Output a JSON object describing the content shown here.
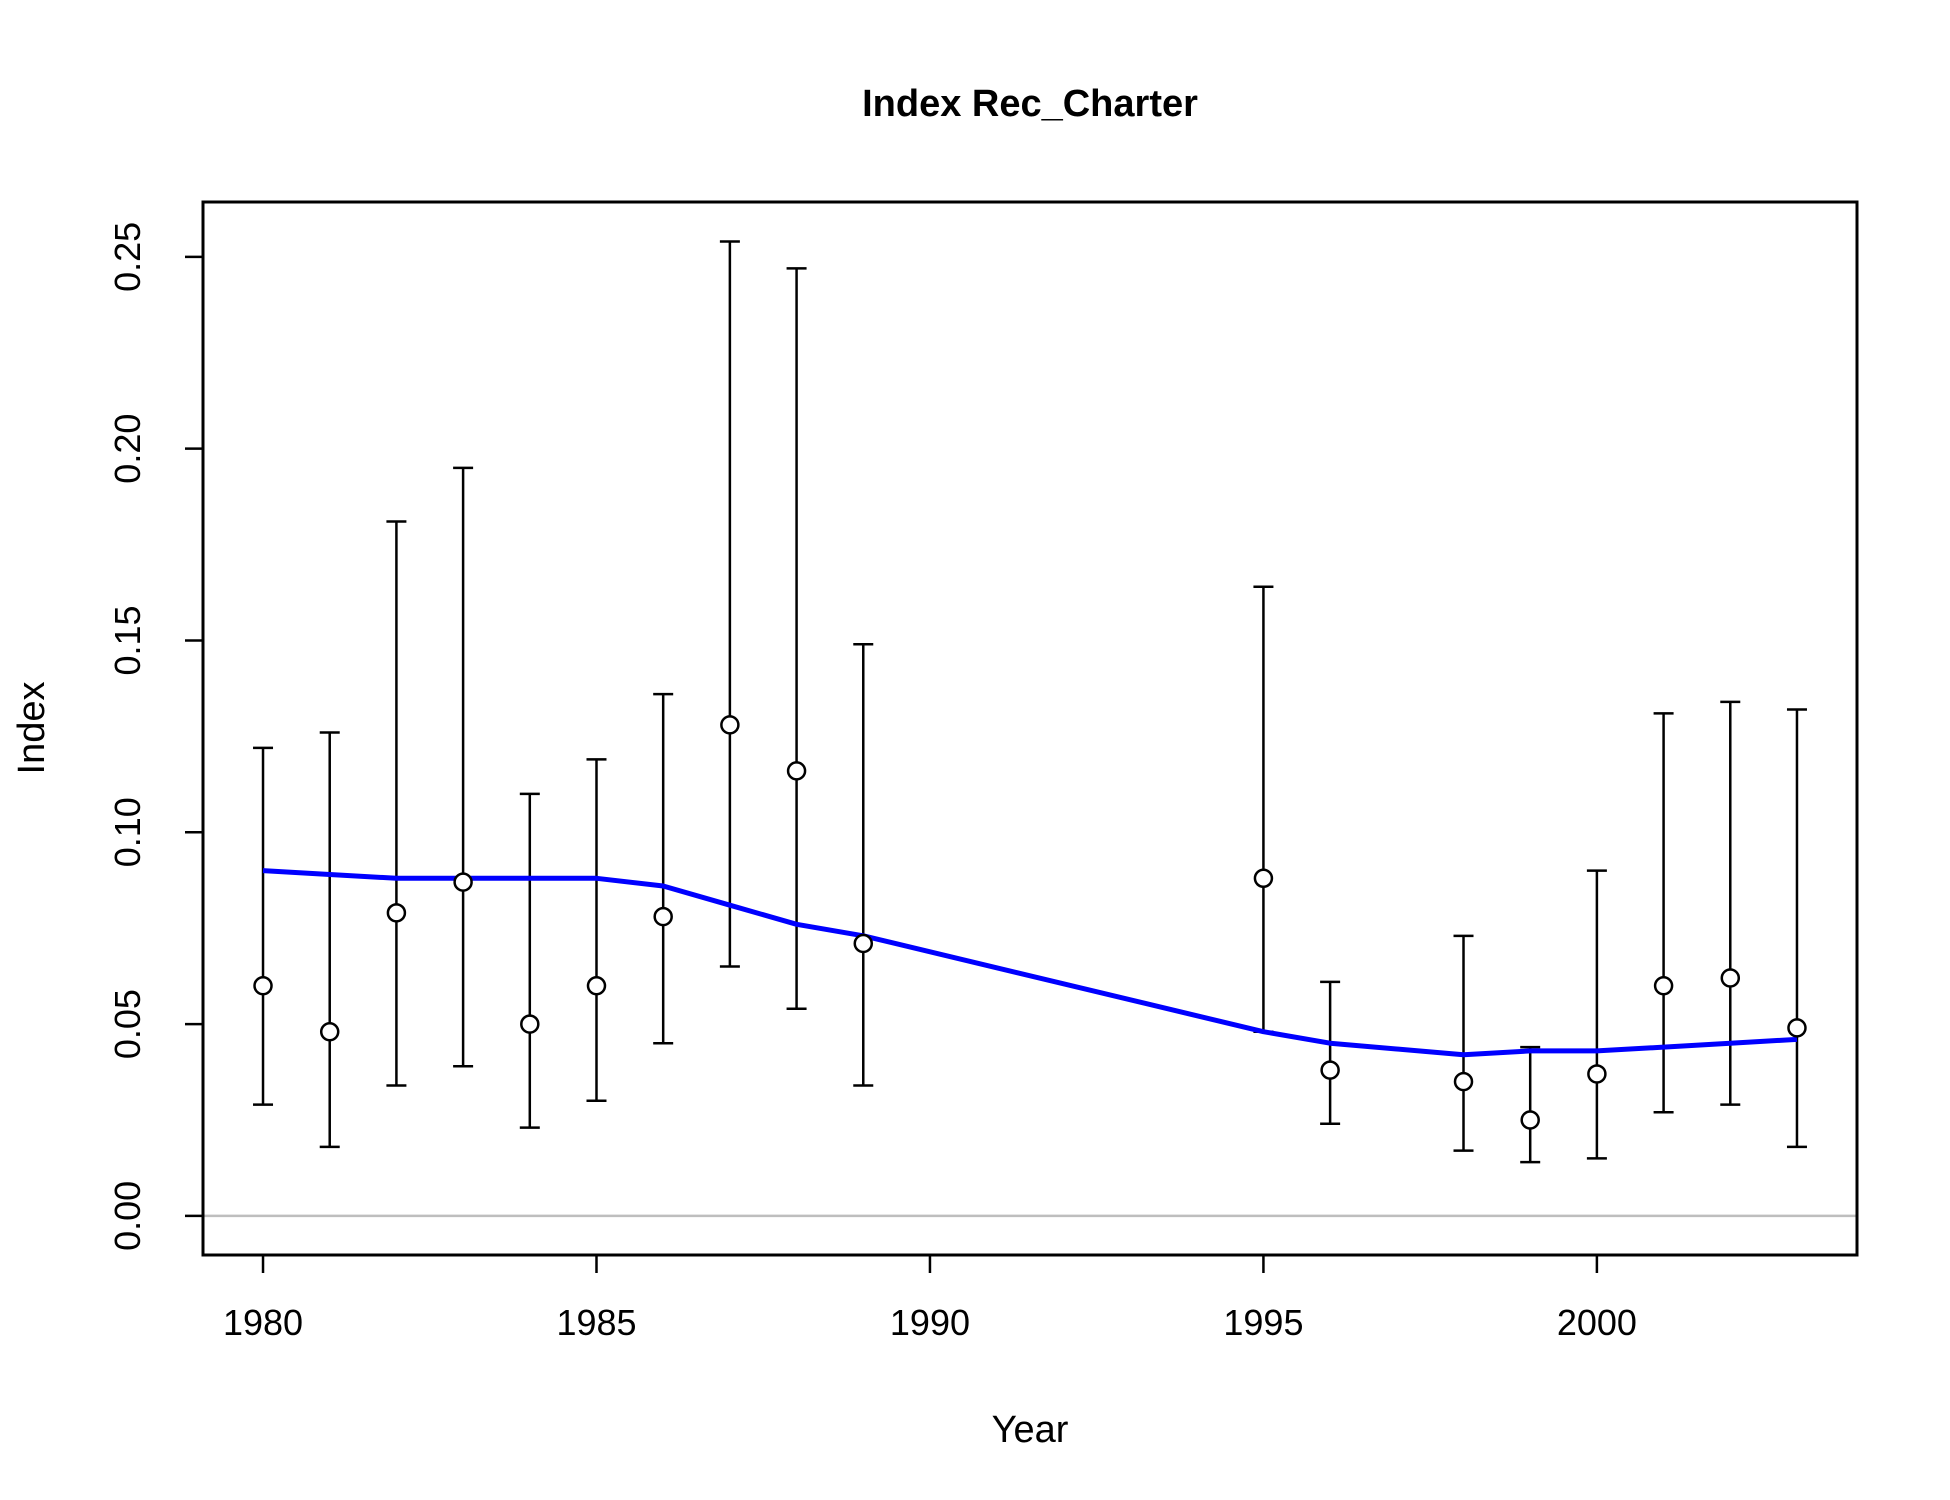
{
  "chart_data": {
    "type": "scatter",
    "title": "Index Rec_Charter",
    "xlabel": "Year",
    "ylabel": "Index",
    "xlim": [
      1979.1,
      2003.9
    ],
    "ylim": [
      -0.0102,
      0.2643
    ],
    "x_ticks": [
      "1980",
      "1985",
      "1990",
      "1995",
      "2000"
    ],
    "y_ticks": [
      "0.00",
      "0.05",
      "0.10",
      "0.15",
      "0.20",
      "0.25"
    ],
    "reference_line_y": 0,
    "grid": false,
    "legend": "none",
    "colors": {
      "points": "#000000",
      "error_bars": "#000000",
      "fit_line": "#0000ff",
      "zero_line": "#bebebe",
      "box": "#000000"
    },
    "series": [
      {
        "kind": "observed",
        "x": [
          1980,
          1981,
          1982,
          1983,
          1984,
          1985,
          1986,
          1987,
          1988,
          1989,
          1995,
          1996,
          1998,
          1999,
          2000,
          2001,
          2002,
          2003
        ],
        "y": [
          0.06,
          0.048,
          0.079,
          0.087,
          0.05,
          0.06,
          0.078,
          0.128,
          0.116,
          0.071,
          0.088,
          0.038,
          0.035,
          0.025,
          0.037,
          0.06,
          0.062,
          0.049
        ],
        "lower": [
          0.029,
          0.018,
          0.034,
          0.039,
          0.023,
          0.03,
          0.045,
          0.065,
          0.054,
          0.034,
          0.048,
          0.024,
          0.017,
          0.014,
          0.015,
          0.027,
          0.029,
          0.018
        ],
        "upper": [
          0.122,
          0.126,
          0.181,
          0.195,
          0.11,
          0.119,
          0.136,
          0.254,
          0.247,
          0.149,
          0.164,
          0.061,
          0.073,
          0.044,
          0.09,
          0.131,
          0.134,
          0.132
        ]
      },
      {
        "kind": "expected",
        "x": [
          1980,
          1981,
          1982,
          1983,
          1984,
          1985,
          1986,
          1987,
          1988,
          1989,
          1995,
          1996,
          1998,
          1999,
          2000,
          2001,
          2002,
          2003
        ],
        "y": [
          0.09,
          0.089,
          0.088,
          0.088,
          0.088,
          0.088,
          0.086,
          0.081,
          0.076,
          0.073,
          0.048,
          0.045,
          0.042,
          0.043,
          0.043,
          0.044,
          0.045,
          0.046
        ]
      }
    ]
  }
}
